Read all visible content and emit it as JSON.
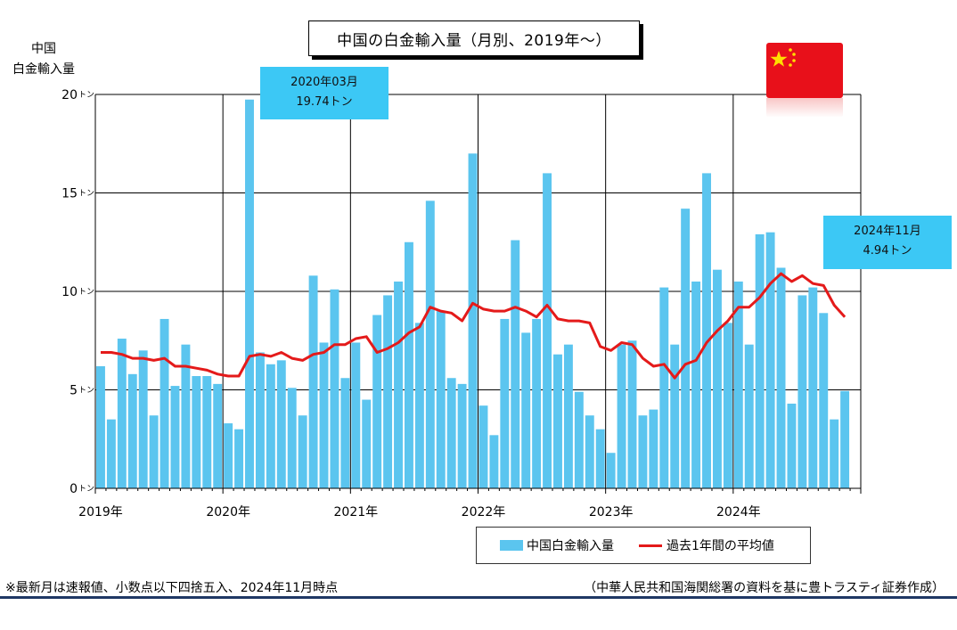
{
  "title": "中国の白金輸入量（月別、2019年～）",
  "y_unit_label_line1": "中国",
  "y_unit_label_line2": "白金輸入量",
  "callouts": [
    {
      "line1": "2020年03月",
      "line2": "19.74トン"
    },
    {
      "line1": "2024年11月",
      "line2": "4.94トン"
    }
  ],
  "legend": {
    "bars": "中国白金輸入量",
    "line": "過去1年間の平均値"
  },
  "footnote": "※最新月は速報値、小数点以下四捨五入、2024年11月時点",
  "source": "（中華人民共和国海関総署の資料を基に豊トラスティ証券作成）",
  "flag": "china-flag",
  "colors": {
    "bars": "#5bc5ef",
    "line": "#e41a1a",
    "callout": "#3cc8f5",
    "flag": "#e8101a",
    "star": "#ffde00"
  },
  "chart_data": {
    "type": "bar",
    "title": "中国の白金輸入量（月別、2019年～）",
    "ylabel": "中国白金輸入量",
    "ylim": [
      0,
      20
    ],
    "y_ticks": [
      {
        "value": 0,
        "label": "0",
        "unit": "トン"
      },
      {
        "value": 5,
        "label": "5",
        "unit": "トン"
      },
      {
        "value": 10,
        "label": "10",
        "unit": "トン"
      },
      {
        "value": 15,
        "label": "15",
        "unit": "トン"
      },
      {
        "value": 20,
        "label": "20",
        "unit": "トン"
      }
    ],
    "x_ticks": [
      "2019年",
      "2020年",
      "2021年",
      "2022年",
      "2023年",
      "2024年"
    ],
    "grid": true,
    "legend_position": "bottom-right",
    "categories": [
      "2019-01",
      "2019-02",
      "2019-03",
      "2019-04",
      "2019-05",
      "2019-06",
      "2019-07",
      "2019-08",
      "2019-09",
      "2019-10",
      "2019-11",
      "2019-12",
      "2020-01",
      "2020-02",
      "2020-03",
      "2020-04",
      "2020-05",
      "2020-06",
      "2020-07",
      "2020-08",
      "2020-09",
      "2020-10",
      "2020-11",
      "2020-12",
      "2021-01",
      "2021-02",
      "2021-03",
      "2021-04",
      "2021-05",
      "2021-06",
      "2021-07",
      "2021-08",
      "2021-09",
      "2021-10",
      "2021-11",
      "2021-12",
      "2022-01",
      "2022-02",
      "2022-03",
      "2022-04",
      "2022-05",
      "2022-06",
      "2022-07",
      "2022-08",
      "2022-09",
      "2022-10",
      "2022-11",
      "2022-12",
      "2023-01",
      "2023-02",
      "2023-03",
      "2023-04",
      "2023-05",
      "2023-06",
      "2023-07",
      "2023-08",
      "2023-09",
      "2023-10",
      "2023-11",
      "2023-12",
      "2024-01",
      "2024-02",
      "2024-03",
      "2024-04",
      "2024-05",
      "2024-06",
      "2024-07",
      "2024-08",
      "2024-09",
      "2024-10",
      "2024-11"
    ],
    "series": [
      {
        "name": "中国白金輸入量",
        "type": "bar",
        "values": [
          6.2,
          3.5,
          7.6,
          5.8,
          7.0,
          3.7,
          8.6,
          5.2,
          7.3,
          5.7,
          5.7,
          5.3,
          3.3,
          3.0,
          19.74,
          6.9,
          6.3,
          6.5,
          5.1,
          3.7,
          10.8,
          7.4,
          10.1,
          5.6,
          7.4,
          4.5,
          8.8,
          9.8,
          10.5,
          12.5,
          8.4,
          14.6,
          9.0,
          5.6,
          5.3,
          17.0,
          4.2,
          2.7,
          8.6,
          12.6,
          7.9,
          8.6,
          16.0,
          6.8,
          7.3,
          4.9,
          3.7,
          3.0,
          1.8,
          7.3,
          7.5,
          3.7,
          4.0,
          10.2,
          7.3,
          14.2,
          10.5,
          16.0,
          11.1,
          8.4,
          10.5,
          7.3,
          12.9,
          13.0,
          11.2,
          4.3,
          9.8,
          10.2,
          8.9,
          3.5,
          4.94
        ]
      },
      {
        "name": "過去1年間の平均値",
        "type": "line",
        "values": [
          6.9,
          6.9,
          6.8,
          6.6,
          6.6,
          6.5,
          6.6,
          6.2,
          6.2,
          6.1,
          6.0,
          5.8,
          5.7,
          5.7,
          6.7,
          6.8,
          6.7,
          6.9,
          6.6,
          6.5,
          6.8,
          6.9,
          7.3,
          7.3,
          7.6,
          7.7,
          6.9,
          7.1,
          7.4,
          7.9,
          8.2,
          9.2,
          9.0,
          8.9,
          8.5,
          9.4,
          9.1,
          9.0,
          9.0,
          9.2,
          9.0,
          8.7,
          9.3,
          8.6,
          8.5,
          8.5,
          8.4,
          7.2,
          7.0,
          7.4,
          7.3,
          6.6,
          6.2,
          6.3,
          5.6,
          6.3,
          6.5,
          7.4,
          8.0,
          8.5,
          9.2,
          9.2,
          9.7,
          10.4,
          10.9,
          10.5,
          10.8,
          10.4,
          10.3,
          9.3,
          8.7
        ]
      }
    ]
  }
}
